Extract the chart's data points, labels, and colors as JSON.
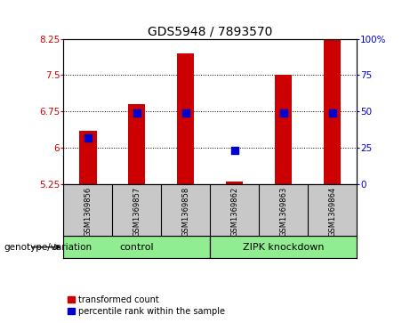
{
  "title": "GDS5948 / 7893570",
  "samples": [
    "GSM1369856",
    "GSM1369857",
    "GSM1369858",
    "GSM1369862",
    "GSM1369863",
    "GSM1369864"
  ],
  "transformed_count": [
    6.35,
    6.9,
    7.95,
    5.3,
    7.5,
    8.35
  ],
  "percentile_rank_y": [
    6.2,
    6.72,
    6.72,
    5.94,
    6.72,
    6.72
  ],
  "y_min": 5.25,
  "y_max": 8.25,
  "y_ticks": [
    5.25,
    6.0,
    6.75,
    7.5,
    8.25
  ],
  "y_tick_labels": [
    "5.25",
    "6",
    "6.75",
    "7.5",
    "8.25"
  ],
  "y2_ticks": [
    0,
    25,
    50,
    75,
    100
  ],
  "y2_tick_labels": [
    "0",
    "25",
    "50",
    "75",
    "100%"
  ],
  "bar_color": "#cc0000",
  "dot_color": "#0000cc",
  "bg_color": "#ffffff",
  "plot_bg_color": "#ffffff",
  "label_bg_color": "#c8c8c8",
  "genotype_bg": "#90ee90",
  "control_label": "control",
  "zipk_label": "ZIPK knockdown",
  "genotype_label": "genotype/variation",
  "legend_tc": "transformed count",
  "legend_pr": "percentile rank within the sample",
  "grid_style": "dotted",
  "grid_color": "#000000",
  "bar_width": 0.35,
  "dot_size": 35,
  "title_fontsize": 10,
  "tick_fontsize": 7.5,
  "sample_fontsize": 6,
  "genotype_fontsize": 8,
  "legend_fontsize": 7
}
